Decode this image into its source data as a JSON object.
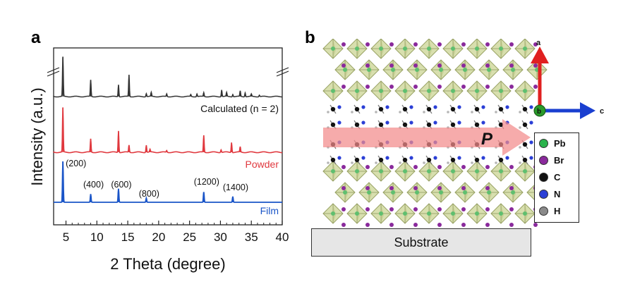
{
  "panel_a": {
    "label": "a",
    "xlabel": "2 Theta (degree)",
    "ylabel": "Intensity (a.u.)",
    "xticks": [
      "5",
      "10",
      "15",
      "20",
      "25",
      "30",
      "35",
      "40"
    ],
    "traces": [
      {
        "label": "Calculated (n = 2)",
        "color": "#333333"
      },
      {
        "label": "Powder",
        "color": "#e0383e"
      },
      {
        "label": "Film",
        "color": "#1a55c8"
      }
    ],
    "peak_labels": [
      "(200)",
      "(400)",
      "(600)",
      "(800)",
      "(1200)",
      "(1400)"
    ]
  },
  "chart_data": {
    "type": "line",
    "title": "",
    "xlabel": "2 Theta (degree)",
    "ylabel": "Intensity (a.u.)",
    "xlim": [
      3,
      40
    ],
    "series": [
      {
        "name": "Calculated (n = 2)",
        "peaks": [
          [
            4.5,
            1.0
          ],
          [
            9.0,
            0.42
          ],
          [
            13.5,
            0.3
          ],
          [
            15.2,
            0.55
          ],
          [
            18.0,
            0.08
          ],
          [
            18.8,
            0.1
          ],
          [
            21.3,
            0.07
          ],
          [
            25.2,
            0.05
          ],
          [
            26.2,
            0.07
          ],
          [
            27.3,
            0.1
          ],
          [
            30.2,
            0.17
          ],
          [
            31.0,
            0.1
          ],
          [
            32.0,
            0.06
          ],
          [
            33.2,
            0.14
          ],
          [
            34.0,
            0.1
          ],
          [
            35.0,
            0.06
          ],
          [
            36.3,
            0.04
          ]
        ]
      },
      {
        "name": "Powder",
        "peaks": [
          [
            4.5,
            1.0
          ],
          [
            9.0,
            0.3
          ],
          [
            13.5,
            0.48
          ],
          [
            15.2,
            0.16
          ],
          [
            18.0,
            0.16
          ],
          [
            18.6,
            0.06
          ],
          [
            21.3,
            0.04
          ],
          [
            27.3,
            0.38
          ],
          [
            30.1,
            0.06
          ],
          [
            31.8,
            0.22
          ],
          [
            33.2,
            0.12
          ]
        ]
      },
      {
        "name": "Film",
        "peaks": [
          [
            4.5,
            1.0
          ],
          [
            9.0,
            0.2
          ],
          [
            13.5,
            0.33
          ],
          [
            18.0,
            0.1
          ],
          [
            27.3,
            0.25
          ],
          [
            32.0,
            0.14
          ]
        ]
      }
    ],
    "annotations": [
      {
        "text": "(200)",
        "x": 4.5
      },
      {
        "text": "(400)",
        "x": 9.0
      },
      {
        "text": "(600)",
        "x": 13.5
      },
      {
        "text": "(800)",
        "x": 18.0
      },
      {
        "text": "(1200)",
        "x": 27.3
      },
      {
        "text": "(1400)",
        "x": 32.0
      }
    ]
  },
  "panel_b": {
    "label": "b",
    "polarization_label": "P",
    "substrate_label": "Substrate",
    "axes": [
      {
        "label": "a",
        "color": "#e02020"
      },
      {
        "label": "b",
        "color": "#2a9a2a"
      },
      {
        "label": "c",
        "color": "#1a3fd0"
      }
    ],
    "legend": [
      {
        "label": "Pb",
        "color": "#2bb24c"
      },
      {
        "label": "Br",
        "color": "#8a2a9c"
      },
      {
        "label": "C",
        "color": "#111111"
      },
      {
        "label": "N",
        "color": "#2b3fd6"
      },
      {
        "label": "H",
        "color": "#8a8a8a"
      }
    ]
  }
}
